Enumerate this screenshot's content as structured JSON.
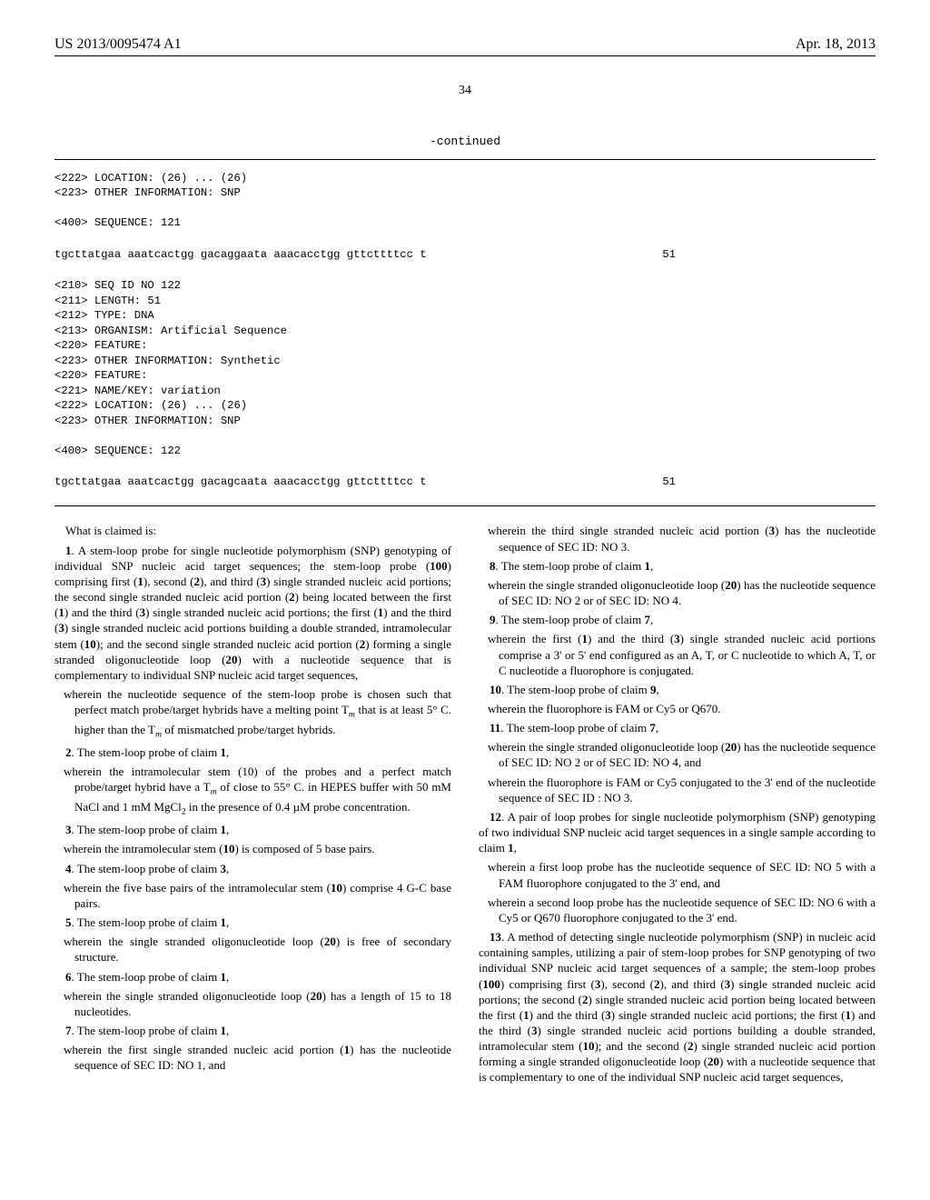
{
  "header": {
    "left": "US 2013/0095474 A1",
    "right": "Apr. 18, 2013"
  },
  "page_number": "34",
  "continued_label": "-continued",
  "seq1_lines": [
    "<222> LOCATION: (26) ... (26)",
    "<223> OTHER INFORMATION: SNP",
    "",
    "<400> SEQUENCE: 121"
  ],
  "seq1_sequence": "tgcttatgaa aaatcactgg gacaggaata aaacacctgg gttcttttcc t",
  "seq1_len": "51",
  "seq2_lines": [
    "<210> SEQ ID NO 122",
    "<211> LENGTH: 51",
    "<212> TYPE: DNA",
    "<213> ORGANISM: Artificial Sequence",
    "<220> FEATURE:",
    "<223> OTHER INFORMATION: Synthetic",
    "<220> FEATURE:",
    "<221> NAME/KEY: variation",
    "<222> LOCATION: (26) ... (26)",
    "<223> OTHER INFORMATION: SNP",
    "",
    "<400> SEQUENCE: 122"
  ],
  "seq2_sequence": "tgcttatgaa aaatcactgg gacagcaata aaacacctgg gttcttttcc t",
  "seq2_len": "51",
  "claims_intro": "What is claimed is:",
  "c1a": "1. A stem-loop probe for single nucleotide polymorphism (SNP) genotyping of individual SNP nucleic acid target sequences; the stem-loop probe (100) comprising first (1), second (2), and third (3) single stranded nucleic acid portions; the second single stranded nucleic acid portion (2) being located between the first (1) and the third (3) single stranded nucleic acid portions; the first (1) and the third (3) single stranded nucleic acid portions building a double stranded, intramolecular stem (10); and the second single stranded nucleic acid portion (2) forming a single stranded oligonucleotide loop (20) with a nucleotide sequence that is complementary to individual SNP nucleic acid target sequences,",
  "c1b": "wherein the nucleotide sequence of the stem-loop probe is chosen such that perfect match probe/target hybrids have a melting point T",
  "c1b2": " that is at least 5° C. higher than the T",
  "c1b3": " of mismatched probe/target hybrids.",
  "c2a": "2. The stem-loop probe of claim 1,",
  "c2b": "wherein the intramolecular stem (10) of the probes and a perfect match probe/target hybrid have a T",
  "c2b2": " of close to 55° C. in HEPES buffer with 50 mM NaCl and 1 mM MgCl",
  "c2b3": " in the presence of 0.4 µM probe concentration.",
  "c3a": "3. The stem-loop probe of claim 1,",
  "c3b": "wherein the intramolecular stem (10) is composed of 5 base pairs.",
  "c4a": "4. The stem-loop probe of claim 3,",
  "c4b": "wherein the five base pairs of the intramolecular stem (10) comprise 4 G-C base pairs.",
  "c5a": "5. The stem-loop probe of claim 1,",
  "c5b": "wherein the single stranded oligonucleotide loop (20) is free of secondary structure.",
  "c6a": "6. The stem-loop probe of claim 1,",
  "c6b": "wherein the single stranded oligonucleotide loop (20) has a length of 15 to 18 nucleotides.",
  "c7a": "7. The stem-loop probe of claim 1,",
  "c7b": "wherein the first single stranded nucleic acid portion (1) has the nucleotide sequence of SEC ID: NO 1, and",
  "c7c": "wherein the third single stranded nucleic acid portion (3) has the nucleotide sequence of SEC ID: NO 3.",
  "c8a": "8. The stem-loop probe of claim 1,",
  "c8b": "wherein the single stranded oligonucleotide loop (20) has the nucleotide sequence of SEC ID: NO 2 or of SEC ID: NO 4.",
  "c9a": "9. The stem-loop probe of claim 7,",
  "c9b": "wherein the first (1) and the third (3) single stranded nucleic acid portions comprise a 3' or 5' end configured as an A, T, or C nucleotide to which A, T, or C nucleotide a fluorophore is conjugated.",
  "c10a": "10. The stem-loop probe of claim 9,",
  "c10b": "wherein the fluorophore is FAM or Cy5 or Q670.",
  "c11a": "11. The stem-loop probe of claim 7,",
  "c11b": "wherein the single stranded oligonucleotide loop (20) has the nucleotide sequence of SEC ID: NO 2 or of SEC ID: NO 4, and",
  "c11c": "wherein the fluorophore is FAM or Cy5 conjugated to the 3' end of the nucleotide sequence of SEC ID : NO 3.",
  "c12a": "12. A pair of loop probes for single nucleotide polymorphism (SNP) genotyping of two individual SNP nucleic acid target sequences in a single sample according to claim 1,",
  "c12b": "wherein a first loop probe has the nucleotide sequence of SEC ID: NO 5 with a FAM fluorophore conjugated to the 3' end, and",
  "c12c": "wherein a second loop probe has the nucleotide sequence of SEC ID: NO 6 with a Cy5 or Q670 fluorophore conjugated to the 3' end.",
  "c13a": "13. A method of detecting single nucleotide polymorphism (SNP) in nucleic acid containing samples, utilizing a pair of stem-loop probes for SNP genotyping of two individual SNP nucleic acid target sequences of a sample; the stem-loop probes (100) comprising first (3), second (2), and third (3) single stranded nucleic acid portions; the second (2) single stranded nucleic acid portion being located between the first (1) and the third (3) single stranded nucleic acid portions; the first (1) and the third (3) single stranded nucleic acid portions building a double stranded, intramolecular stem (10); and the second (2) single stranded nucleic acid portion forming a single stranded oligonucleotide loop (20) with a nucleotide sequence that is complementary to one of the individual SNP nucleic acid target sequences,"
}
